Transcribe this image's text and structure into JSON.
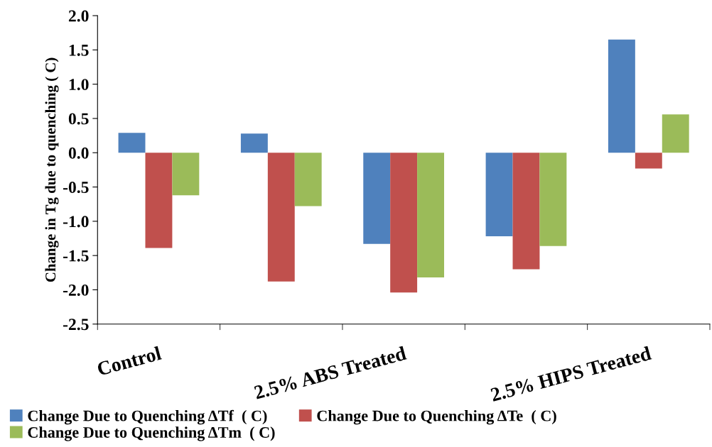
{
  "chart_data": {
    "type": "bar",
    "ylabel": "Change in Tg due to quenching ( C)",
    "categories": [
      "Control",
      null,
      "2.5% ABS Treated",
      null,
      "2.5% HIPS Treated"
    ],
    "series": [
      {
        "name": "Change Due to Quenching ΔTf  ( C)",
        "color": "#4f81bd",
        "values": [
          0.29,
          0.28,
          -1.33,
          -1.22,
          1.65
        ]
      },
      {
        "name": "Change Due to Quenching ΔTe  ( C)",
        "color": "#c0504d",
        "values": [
          -1.39,
          -1.88,
          -2.04,
          -1.7,
          -0.23
        ]
      },
      {
        "name": "Change Due to Quenching ΔTm  ( C)",
        "color": "#9bbb59",
        "values": [
          -0.62,
          -0.78,
          -1.82,
          -1.36,
          0.56
        ]
      }
    ],
    "ylim": [
      -2.5,
      2.0
    ],
    "yticks": [
      -2.5,
      {
        "value": -2,
        "label": "-2.0"
      },
      -1.5,
      {
        "value": -1,
        "label": "-1.0"
      },
      -0.5,
      {
        "value": 0,
        "label": "0.0"
      },
      0.5,
      {
        "value": 1,
        "label": "1.0"
      },
      1.5,
      {
        "value": 2,
        "label": "2.0"
      }
    ],
    "grid": false,
    "legend": "bottom"
  }
}
